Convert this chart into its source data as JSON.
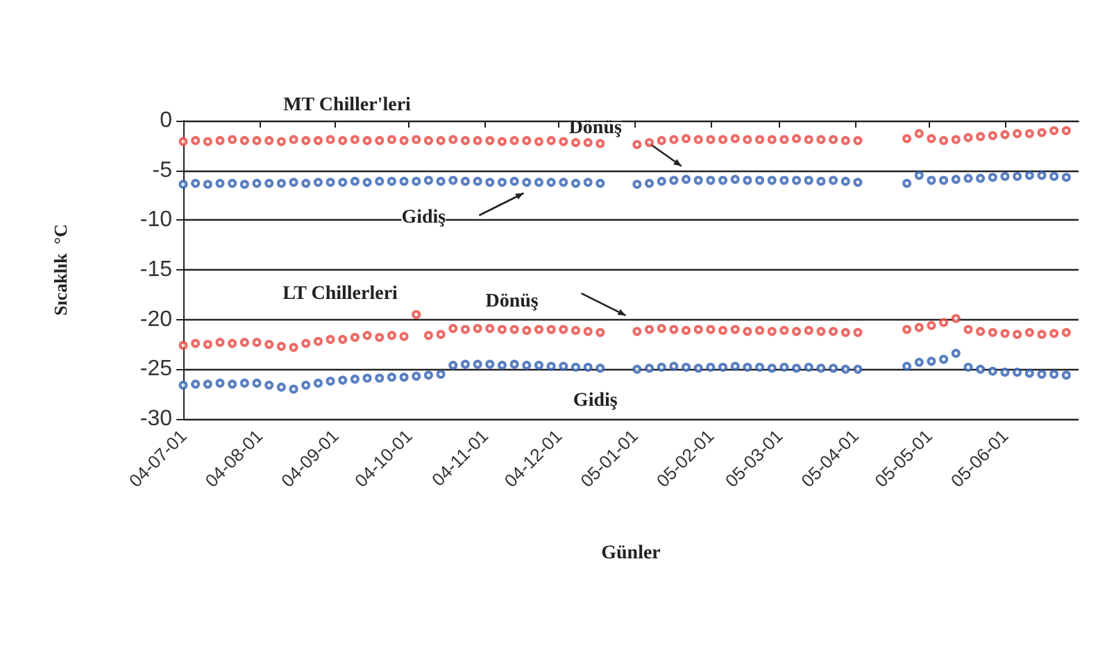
{
  "chart_data": {
    "type": "scatter",
    "xlabel": "Günler",
    "ylabel": "Sıcaklık  °C",
    "x": [
      "2004-07-01",
      "2004-07-06",
      "2004-07-11",
      "2004-07-16",
      "2004-07-21",
      "2004-07-26",
      "2004-07-31",
      "2004-08-05",
      "2004-08-10",
      "2004-08-15",
      "2004-08-20",
      "2004-08-25",
      "2004-08-30",
      "2004-09-04",
      "2004-09-09",
      "2004-09-14",
      "2004-09-19",
      "2004-09-24",
      "2004-09-29",
      "2004-10-04",
      "2004-10-09",
      "2004-10-14",
      "2004-10-19",
      "2004-10-24",
      "2004-10-29",
      "2004-11-03",
      "2004-11-08",
      "2004-11-13",
      "2004-11-18",
      "2004-11-23",
      "2004-11-28",
      "2004-12-03",
      "2004-12-08",
      "2004-12-13",
      "2004-12-18",
      "2004-12-23",
      "2004-12-28",
      "2005-01-02",
      "2005-01-07",
      "2005-01-12",
      "2005-01-17",
      "2005-01-22",
      "2005-01-27",
      "2005-02-01",
      "2005-02-06",
      "2005-02-11",
      "2005-02-16",
      "2005-02-21",
      "2005-02-26",
      "2005-03-03",
      "2005-03-08",
      "2005-03-13",
      "2005-03-18",
      "2005-03-23",
      "2005-03-28",
      "2005-04-02",
      "2005-04-07",
      "2005-04-12",
      "2005-04-17",
      "2005-04-22",
      "2005-04-27",
      "2005-05-02",
      "2005-05-07",
      "2005-05-12",
      "2005-05-17",
      "2005-05-22",
      "2005-05-27",
      "2005-06-01",
      "2005-06-06",
      "2005-06-11",
      "2005-06-16",
      "2005-06-21",
      "2005-06-26"
    ],
    "series": [
      {
        "color": "#e8453f",
        "values": [
          -2.1,
          -2.0,
          -2.1,
          -2.0,
          -1.9,
          -2.0,
          -2.0,
          -2.0,
          -2.1,
          -1.9,
          -2.0,
          -2.0,
          -1.9,
          -2.0,
          -1.9,
          -2.0,
          -2.0,
          -1.9,
          -2.0,
          -1.9,
          -2.0,
          -2.0,
          -1.9,
          -2.0,
          -2.0,
          -2.0,
          -2.1,
          -2.0,
          -2.0,
          -2.1,
          -2.0,
          -2.1,
          -2.2,
          -2.2,
          -2.3,
          null,
          null,
          -2.4,
          -2.2,
          -2.0,
          -1.9,
          -1.8,
          -1.9,
          -1.9,
          -1.9,
          -1.8,
          -1.9,
          -1.9,
          -1.9,
          -1.9,
          -1.8,
          -1.9,
          -1.9,
          -1.9,
          -2.0,
          -2.0,
          null,
          null,
          null,
          -1.8,
          -1.3,
          -1.8,
          -2.0,
          -1.9,
          -1.7,
          -1.6,
          -1.5,
          -1.4,
          -1.3,
          -1.3,
          -1.2,
          -1.0,
          -1.0
        ]
      },
      {
        "color": "#2f5fb3",
        "values": [
          -6.4,
          -6.3,
          -6.4,
          -6.3,
          -6.3,
          -6.4,
          -6.3,
          -6.3,
          -6.3,
          -6.2,
          -6.3,
          -6.2,
          -6.2,
          -6.2,
          -6.1,
          -6.2,
          -6.1,
          -6.1,
          -6.1,
          -6.1,
          -6.0,
          -6.1,
          -6.0,
          -6.1,
          -6.1,
          -6.2,
          -6.2,
          -6.1,
          -6.2,
          -6.2,
          -6.2,
          -6.2,
          -6.3,
          -6.2,
          -6.3,
          null,
          null,
          -6.4,
          -6.3,
          -6.1,
          -6.0,
          -5.9,
          -6.0,
          -6.0,
          -6.0,
          -5.9,
          -6.0,
          -6.0,
          -6.0,
          -6.0,
          -6.0,
          -6.0,
          -6.1,
          -6.0,
          -6.1,
          -6.2,
          null,
          null,
          null,
          -6.3,
          -5.5,
          -6.0,
          -6.0,
          -5.9,
          -5.8,
          -5.8,
          -5.7,
          -5.6,
          -5.6,
          -5.5,
          -5.5,
          -5.6,
          -5.7
        ]
      },
      {
        "color": "#e8453f",
        "values": [
          -22.6,
          -22.4,
          -22.5,
          -22.3,
          -22.4,
          -22.3,
          -22.3,
          -22.5,
          -22.7,
          -22.8,
          -22.4,
          -22.2,
          -22.0,
          -22.0,
          -21.8,
          -21.6,
          -21.8,
          -21.6,
          -21.7,
          -19.5,
          -21.6,
          -21.5,
          -20.9,
          -21.0,
          -20.9,
          -20.9,
          -21.0,
          -21.0,
          -21.1,
          -21.0,
          -21.0,
          -21.0,
          -21.1,
          -21.2,
          -21.3,
          null,
          null,
          -21.2,
          -21.0,
          -20.9,
          -21.0,
          -21.1,
          -21.0,
          -21.0,
          -21.1,
          -21.0,
          -21.2,
          -21.1,
          -21.2,
          -21.1,
          -21.2,
          -21.1,
          -21.2,
          -21.2,
          -21.3,
          -21.3,
          null,
          null,
          null,
          -21.0,
          -20.8,
          -20.6,
          -20.3,
          -19.9,
          -21.0,
          -21.2,
          -21.3,
          -21.4,
          -21.5,
          -21.3,
          -21.5,
          -21.4,
          -21.3
        ]
      },
      {
        "color": "#2f5fb3",
        "values": [
          -26.6,
          -26.5,
          -26.5,
          -26.4,
          -26.5,
          -26.4,
          -26.4,
          -26.6,
          -26.8,
          -27.0,
          -26.6,
          -26.4,
          -26.2,
          -26.1,
          -26.0,
          -25.9,
          -25.9,
          -25.8,
          -25.8,
          -25.7,
          -25.6,
          -25.5,
          -24.6,
          -24.5,
          -24.5,
          -24.5,
          -24.6,
          -24.5,
          -24.6,
          -24.6,
          -24.7,
          -24.7,
          -24.8,
          -24.8,
          -24.9,
          null,
          null,
          -25.0,
          -24.9,
          -24.8,
          -24.7,
          -24.8,
          -24.9,
          -24.8,
          -24.8,
          -24.7,
          -24.8,
          -24.8,
          -24.9,
          -24.8,
          -24.9,
          -24.8,
          -24.9,
          -24.9,
          -25.0,
          -25.0,
          null,
          null,
          null,
          -24.7,
          -24.3,
          -24.2,
          -24.0,
          -23.4,
          -24.8,
          -25.0,
          -25.2,
          -25.3,
          -25.3,
          -25.4,
          -25.5,
          -25.5,
          -25.6
        ]
      }
    ],
    "xlim": [
      "2004-07-01",
      "2005-07-01"
    ],
    "xticks": [
      {
        "value": "2004-07-01",
        "label": "04-07-01"
      },
      {
        "value": "2004-08-01",
        "label": "04-08-01"
      },
      {
        "value": "2004-09-01",
        "label": "04-09-01"
      },
      {
        "value": "2004-10-01",
        "label": "04-10-01"
      },
      {
        "value": "2004-11-01",
        "label": "04-11-01"
      },
      {
        "value": "2004-12-01",
        "label": "04-12-01"
      },
      {
        "value": "2005-01-01",
        "label": "05-01-01"
      },
      {
        "value": "2005-02-01",
        "label": "05-02-01"
      },
      {
        "value": "2005-03-01",
        "label": "05-03-01"
      },
      {
        "value": "2005-04-01",
        "label": "05-04-01"
      },
      {
        "value": "2005-05-01",
        "label": "05-05-01"
      },
      {
        "value": "2005-06-01",
        "label": "05-06-01"
      }
    ],
    "ylim": [
      -30,
      0
    ],
    "yticks": [
      -30,
      -25,
      -20,
      -15,
      -10,
      -5,
      0
    ],
    "grid": "y",
    "marker": "circle",
    "annotations": [
      "MT Chiller'leri",
      {
        "text": "Dönüş",
        "x": "2004-12-16",
        "y": -0.8
      },
      {
        "text": "Gidiş",
        "x": "2004-10-07",
        "y": -9.8
      },
      "LT Chillerleri",
      {
        "text": "Dönüş",
        "x": "2004-11-12",
        "y": -18.2
      },
      {
        "text": "Gidiş",
        "x": "2004-12-16",
        "y": -28.2
      }
    ]
  }
}
